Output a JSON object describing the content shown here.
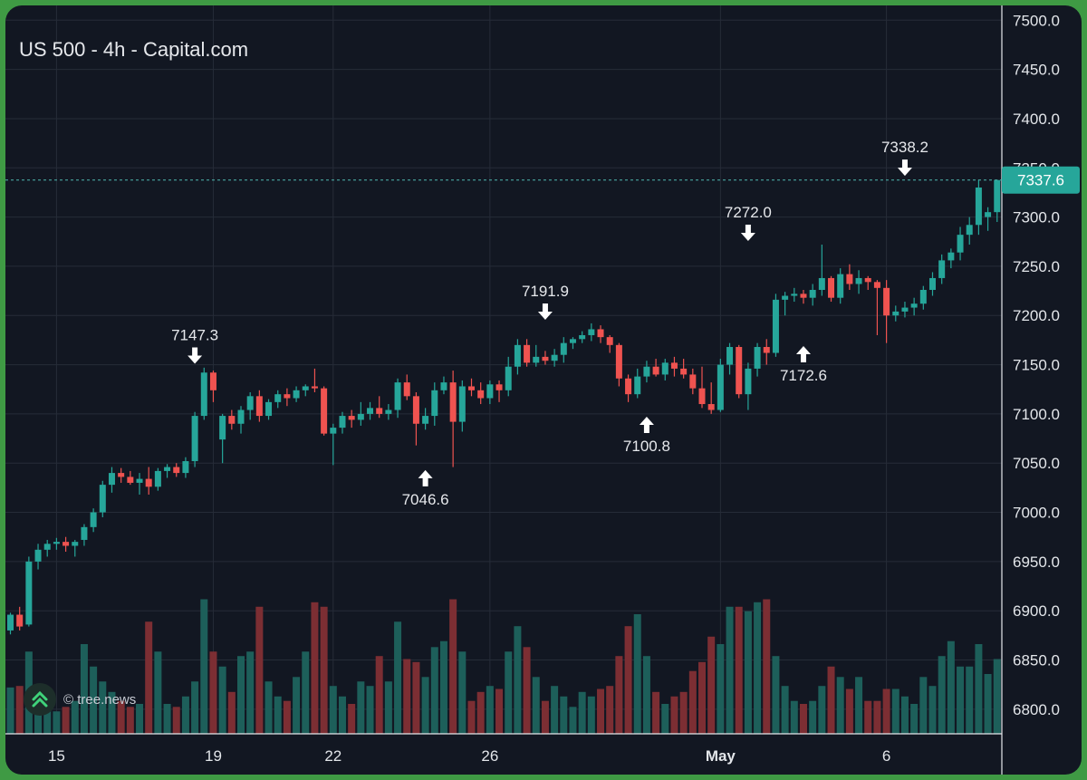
{
  "header": {
    "title": "US 500 - 4h - Capital.com"
  },
  "watermark": {
    "text": "© tree.news",
    "icon": "tree-news-logo-icon"
  },
  "colors": {
    "background": "#121722",
    "up": "#26a69a",
    "down": "#ef5350",
    "volume_up": "#1d5f5a",
    "volume_down": "#7c2e33",
    "grid": "#262c38",
    "axis_text": "#e3e6ea",
    "price_line": "#4fb8b0"
  },
  "chart_data": {
    "type": "candlestick",
    "title": "US 500 - 4h - Capital.com",
    "y_axis": {
      "position": "right",
      "min": 6775,
      "max": 7515,
      "ticks": [
        7500,
        7450,
        7400,
        7350,
        7300,
        7250,
        7200,
        7150,
        7100,
        7050,
        7000,
        6950,
        6900,
        6850,
        6800
      ],
      "tick_labels": [
        "7500.0",
        "7450.0",
        "7400.0",
        "7350.0",
        "7300.0",
        "7250.0",
        "7200.0",
        "7150.0",
        "7100.0",
        "7050.0",
        "7000.0",
        "6950.0",
        "6900.0",
        "6850.0",
        "6800.0"
      ]
    },
    "x_axis": {
      "ticks": [
        {
          "label": "15",
          "index": 5
        },
        {
          "label": "19",
          "index": 22
        },
        {
          "label": "22",
          "index": 35
        },
        {
          "label": "26",
          "index": 52
        },
        {
          "label": "May",
          "index": 77,
          "bold": true
        },
        {
          "label": "6",
          "index": 95
        }
      ]
    },
    "last_price": {
      "value": 7337.6,
      "label": "7337.6"
    },
    "annotations": [
      {
        "label": "7147.3",
        "index": 20,
        "price": 7147.3,
        "direction": "down"
      },
      {
        "label": "7046.6",
        "index": 45,
        "price": 7046.6,
        "direction": "up"
      },
      {
        "label": "7191.9",
        "index": 58,
        "price": 7191.9,
        "direction": "down"
      },
      {
        "label": "7100.8",
        "index": 69,
        "price": 7100.8,
        "direction": "up"
      },
      {
        "label": "7272.0",
        "index": 80,
        "price": 7272.0,
        "direction": "down"
      },
      {
        "label": "7172.6",
        "index": 86,
        "price": 7172.6,
        "direction": "up"
      },
      {
        "label": "7338.2",
        "index": 97,
        "price": 7338.2,
        "direction": "down"
      }
    ],
    "candles": [
      [
        6880,
        6898,
        6876,
        6896,
        0.31
      ],
      [
        6896,
        6904,
        6880,
        6884,
        0.32
      ],
      [
        6886,
        6955,
        6884,
        6950,
        0.55
      ],
      [
        6950,
        6968,
        6942,
        6962,
        0.3
      ],
      [
        6962,
        6972,
        6955,
        6968,
        0.25
      ],
      [
        6968,
        6974,
        6962,
        6970,
        0.15
      ],
      [
        6970,
        6975,
        6960,
        6966,
        0.18
      ],
      [
        6966,
        6972,
        6955,
        6970,
        0.22
      ],
      [
        6972,
        6988,
        6966,
        6985,
        0.6
      ],
      [
        6985,
        7004,
        6980,
        7000,
        0.45
      ],
      [
        7000,
        7032,
        6995,
        7028,
        0.35
      ],
      [
        7028,
        7046,
        7020,
        7040,
        0.28
      ],
      [
        7040,
        7045,
        7030,
        7036,
        0.22
      ],
      [
        7036,
        7042,
        7028,
        7030,
        0.18
      ],
      [
        7030,
        7040,
        7018,
        7034,
        0.2
      ],
      [
        7034,
        7046,
        7018,
        7026,
        0.75
      ],
      [
        7026,
        7045,
        7022,
        7042,
        0.55
      ],
      [
        7042,
        7049,
        7035,
        7046,
        0.2
      ],
      [
        7046,
        7050,
        7036,
        7040,
        0.18
      ],
      [
        7040,
        7056,
        7035,
        7052,
        0.25
      ],
      [
        7052,
        7102,
        7046,
        7098,
        0.35
      ],
      [
        7098,
        7147,
        7094,
        7142,
        0.9
      ],
      [
        7142,
        7144,
        7112,
        7124,
        0.55
      ],
      [
        7074,
        7100,
        7050,
        7098,
        0.45
      ],
      [
        7098,
        7104,
        7084,
        7090,
        0.28
      ],
      [
        7090,
        7108,
        7080,
        7104,
        0.52
      ],
      [
        7104,
        7122,
        7094,
        7118,
        0.55
      ],
      [
        7118,
        7124,
        7092,
        7098,
        0.85
      ],
      [
        7098,
        7115,
        7094,
        7112,
        0.35
      ],
      [
        7112,
        7124,
        7106,
        7120,
        0.25
      ],
      [
        7120,
        7126,
        7108,
        7116,
        0.22
      ],
      [
        7116,
        7128,
        7112,
        7124,
        0.38
      ],
      [
        7124,
        7130,
        7118,
        7128,
        0.55
      ],
      [
        7128,
        7146,
        7122,
        7126,
        0.88
      ],
      [
        7126,
        7128,
        7078,
        7080,
        0.85
      ],
      [
        7080,
        7090,
        7048,
        7086,
        0.32
      ],
      [
        7086,
        7102,
        7080,
        7098,
        0.25
      ],
      [
        7098,
        7104,
        7086,
        7094,
        0.2
      ],
      [
        7094,
        7112,
        7088,
        7100,
        0.35
      ],
      [
        7100,
        7112,
        7094,
        7106,
        0.32
      ],
      [
        7106,
        7118,
        7096,
        7100,
        0.52
      ],
      [
        7100,
        7110,
        7094,
        7104,
        0.35
      ],
      [
        7104,
        7136,
        7096,
        7132,
        0.75
      ],
      [
        7132,
        7140,
        7114,
        7118,
        0.5
      ],
      [
        7118,
        7122,
        7068,
        7090,
        0.48
      ],
      [
        7090,
        7106,
        7084,
        7098,
        0.38
      ],
      [
        7098,
        7132,
        7088,
        7124,
        0.58
      ],
      [
        7124,
        7138,
        7120,
        7132,
        0.62
      ],
      [
        7132,
        7144,
        7046,
        7092,
        0.9
      ],
      [
        7092,
        7134,
        7082,
        7128,
        0.55
      ],
      [
        7128,
        7136,
        7118,
        7124,
        0.22
      ],
      [
        7124,
        7132,
        7110,
        7116,
        0.28
      ],
      [
        7116,
        7134,
        7110,
        7130,
        0.32
      ],
      [
        7130,
        7134,
        7112,
        7124,
        0.3
      ],
      [
        7124,
        7158,
        7118,
        7148,
        0.55
      ],
      [
        7148,
        7176,
        7140,
        7170,
        0.72
      ],
      [
        7170,
        7176,
        7148,
        7152,
        0.58
      ],
      [
        7152,
        7170,
        7148,
        7158,
        0.38
      ],
      [
        7158,
        7164,
        7150,
        7154,
        0.22
      ],
      [
        7154,
        7166,
        7148,
        7160,
        0.32
      ],
      [
        7160,
        7178,
        7152,
        7172,
        0.25
      ],
      [
        7172,
        7178,
        7166,
        7176,
        0.18
      ],
      [
        7176,
        7184,
        7172,
        7180,
        0.28
      ],
      [
        7180,
        7192,
        7174,
        7186,
        0.25
      ],
      [
        7186,
        7190,
        7172,
        7178,
        0.3
      ],
      [
        7178,
        7180,
        7162,
        7170,
        0.32
      ],
      [
        7170,
        7172,
        7128,
        7136,
        0.52
      ],
      [
        7136,
        7140,
        7112,
        7120,
        0.72
      ],
      [
        7120,
        7146,
        7116,
        7138,
        0.8
      ],
      [
        7138,
        7154,
        7132,
        7148,
        0.52
      ],
      [
        7148,
        7156,
        7138,
        7140,
        0.28
      ],
      [
        7140,
        7156,
        7134,
        7152,
        0.2
      ],
      [
        7152,
        7158,
        7138,
        7146,
        0.25
      ],
      [
        7146,
        7156,
        7136,
        7140,
        0.28
      ],
      [
        7140,
        7146,
        7120,
        7126,
        0.42
      ],
      [
        7126,
        7148,
        7106,
        7110,
        0.48
      ],
      [
        7110,
        7132,
        7100,
        7104,
        0.65
      ],
      [
        7104,
        7156,
        7102,
        7150,
        0.6
      ],
      [
        7150,
        7172,
        7140,
        7168,
        0.85
      ],
      [
        7168,
        7170,
        7116,
        7120,
        0.85
      ],
      [
        7120,
        7152,
        7104,
        7146,
        0.82
      ],
      [
        7146,
        7172,
        7138,
        7168,
        0.88
      ],
      [
        7168,
        7176,
        7150,
        7162,
        0.9
      ],
      [
        7162,
        7222,
        7158,
        7216,
        0.52
      ],
      [
        7216,
        7224,
        7200,
        7220,
        0.32
      ],
      [
        7220,
        7228,
        7214,
        7222,
        0.22
      ],
      [
        7222,
        7226,
        7212,
        7218,
        0.2
      ],
      [
        7218,
        7232,
        7210,
        7226,
        0.22
      ],
      [
        7226,
        7272,
        7220,
        7238,
        0.32
      ],
      [
        7238,
        7240,
        7214,
        7218,
        0.45
      ],
      [
        7218,
        7248,
        7212,
        7242,
        0.38
      ],
      [
        7242,
        7252,
        7226,
        7232,
        0.3
      ],
      [
        7232,
        7246,
        7222,
        7238,
        0.38
      ],
      [
        7238,
        7240,
        7226,
        7234,
        0.22
      ],
      [
        7234,
        7236,
        7180,
        7228,
        0.22
      ],
      [
        7228,
        7236,
        7172,
        7200,
        0.3
      ],
      [
        7200,
        7210,
        7194,
        7204,
        0.3
      ],
      [
        7204,
        7214,
        7198,
        7208,
        0.25
      ],
      [
        7208,
        7218,
        7200,
        7212,
        0.2
      ],
      [
        7212,
        7230,
        7206,
        7226,
        0.38
      ],
      [
        7226,
        7244,
        7220,
        7238,
        0.32
      ],
      [
        7238,
        7262,
        7232,
        7256,
        0.52
      ],
      [
        7256,
        7268,
        7248,
        7264,
        0.62
      ],
      [
        7264,
        7290,
        7256,
        7282,
        0.45
      ],
      [
        7282,
        7300,
        7272,
        7292,
        0.45
      ],
      [
        7292,
        7338,
        7282,
        7330,
        0.6
      ],
      [
        7300,
        7310,
        7286,
        7305,
        0.4
      ],
      [
        7305,
        7338,
        7295,
        7337.6,
        0.5
      ]
    ]
  }
}
